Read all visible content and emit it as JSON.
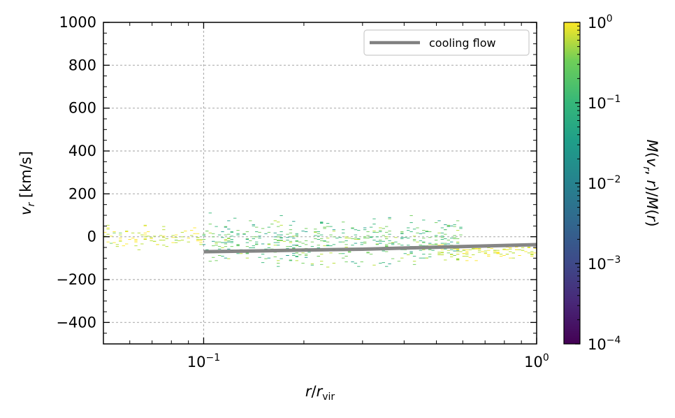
{
  "chart_data": {
    "type": "heatmap",
    "xlabel": "r/r_vir",
    "ylabel": "v_r [km/s]",
    "xscale": "log",
    "xlim": [
      0.05,
      1.0
    ],
    "ylim": [
      -500,
      1000
    ],
    "grid": true,
    "x_ticks": [
      {
        "base": "10",
        "exp": "−1",
        "value": 0.1
      },
      {
        "base": "10",
        "exp": "0",
        "value": 1.0
      }
    ],
    "y_ticks": [
      {
        "label": "1000",
        "value": 1000
      },
      {
        "label": "800",
        "value": 800
      },
      {
        "label": "600",
        "value": 600
      },
      {
        "label": "400",
        "value": 400
      },
      {
        "label": "200",
        "value": 200
      },
      {
        "label": "0",
        "value": 0
      },
      {
        "label": "−200",
        "value": -200
      },
      {
        "label": "−400",
        "value": -400
      }
    ],
    "legend": {
      "position": "top-right",
      "entries": [
        {
          "label": "cooling flow",
          "color": "#808080"
        }
      ]
    },
    "cooling_flow": {
      "x": [
        0.1,
        0.15,
        0.2,
        0.3,
        0.4,
        0.5,
        0.7,
        1.0
      ],
      "y": [
        -70,
        -66,
        -62,
        -58,
        -53,
        -49,
        -43,
        -37
      ]
    },
    "colorbar": {
      "label": "M(v_r, r)/M(r)",
      "scale": "log",
      "range": [
        0.0001,
        1.0
      ],
      "ticks": [
        {
          "base": "10",
          "exp": "0",
          "value": 1.0
        },
        {
          "base": "10",
          "exp": "−1",
          "value": 0.1
        },
        {
          "base": "10",
          "exp": "−2",
          "value": 0.01
        },
        {
          "base": "10",
          "exp": "−3",
          "value": 0.001
        },
        {
          "base": "10",
          "exp": "−4",
          "value": 0.0001
        }
      ],
      "colormap": "viridis"
    },
    "heatmap_regions": [
      {
        "r_range": [
          0.05,
          0.1
        ],
        "vr_range": [
          -80,
          80
        ],
        "fraction_range": [
          0.2,
          1.0
        ]
      },
      {
        "r_range": [
          0.1,
          0.6
        ],
        "vr_range": [
          -170,
          120
        ],
        "fraction_range": [
          0.02,
          0.3
        ]
      },
      {
        "r_range": [
          0.5,
          1.0
        ],
        "vr_range": [
          -120,
          -20
        ],
        "fraction_range": [
          0.3,
          1.0
        ]
      }
    ]
  }
}
